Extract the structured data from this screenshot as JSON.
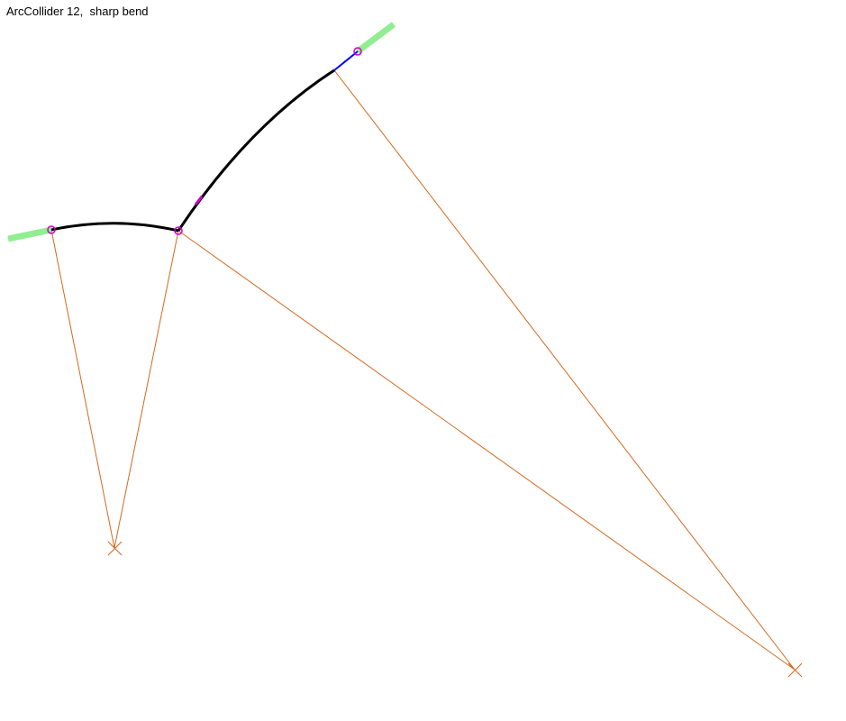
{
  "caption": "ArcCollider 12,  sharp bend",
  "colors": {
    "background": "#ffffff",
    "arc_path": "#000000",
    "construction_lines": "#d2691e",
    "end_stubs": "#90ee90",
    "tangent_segment": "#0000ff",
    "node_markers": "#cc00cc"
  }
}
